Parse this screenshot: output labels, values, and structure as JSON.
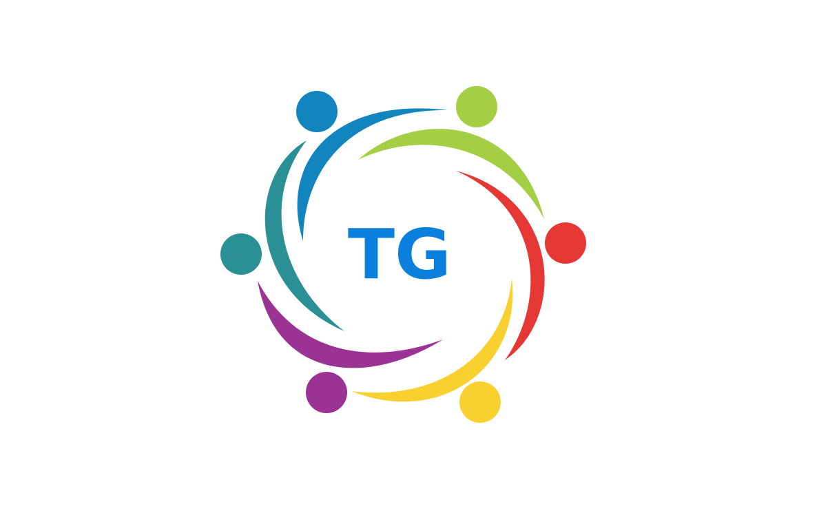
{
  "logo": {
    "text": "TG",
    "text_color": "#0A7FDB",
    "background": "#FFFFFF",
    "figures": [
      {
        "name": "blue-figure",
        "color": "#1385BE"
      },
      {
        "name": "green-figure",
        "color": "#A4CF45"
      },
      {
        "name": "red-figure",
        "color": "#E53834"
      },
      {
        "name": "yellow-figure",
        "color": "#F8D02F"
      },
      {
        "name": "purple-figure",
        "color": "#9A3394"
      },
      {
        "name": "teal-figure",
        "color": "#2B8F96"
      }
    ]
  }
}
